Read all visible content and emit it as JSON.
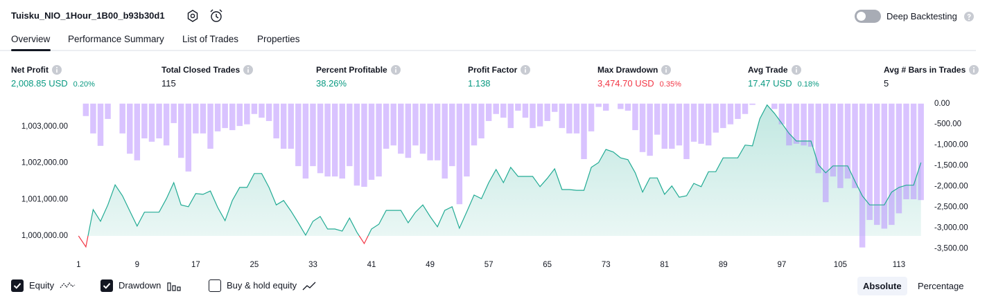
{
  "header": {
    "title": "Tuisku_NIO_1Hour_1B00_b93b30d1",
    "deep_backtesting": "Deep Backtesting"
  },
  "tabs": [
    "Overview",
    "Performance Summary",
    "List of Trades",
    "Properties"
  ],
  "active_tab": 0,
  "stats": [
    {
      "label": "Net Profit",
      "value": "2,008.85 USD",
      "percent": "0.20%",
      "color": "#089981"
    },
    {
      "label": "Total Closed Trades",
      "value": "115",
      "color": "#131722"
    },
    {
      "label": "Percent Profitable",
      "value": "38.26%",
      "color": "#089981"
    },
    {
      "label": "Profit Factor",
      "value": "1.138",
      "color": "#089981"
    },
    {
      "label": "Max Drawdown",
      "value": "3,474.70 USD",
      "percent": "0.35%",
      "color": "#f23645"
    },
    {
      "label": "Avg Trade",
      "value": "17.47 USD",
      "percent": "0.18%",
      "color": "#089981"
    },
    {
      "label": "Avg # Bars in Trades",
      "value": "5",
      "color": "#131722"
    }
  ],
  "chart_data": {
    "type": "combo",
    "x": [
      1,
      2,
      3,
      4,
      5,
      6,
      7,
      8,
      9,
      10,
      11,
      12,
      13,
      14,
      15,
      16,
      17,
      18,
      19,
      20,
      21,
      22,
      23,
      24,
      25,
      26,
      27,
      28,
      29,
      30,
      31,
      32,
      33,
      34,
      35,
      36,
      37,
      38,
      39,
      40,
      41,
      42,
      43,
      44,
      45,
      46,
      47,
      48,
      49,
      50,
      51,
      52,
      53,
      54,
      55,
      56,
      57,
      58,
      59,
      60,
      61,
      62,
      63,
      64,
      65,
      66,
      67,
      68,
      69,
      70,
      71,
      72,
      73,
      74,
      75,
      76,
      77,
      78,
      79,
      80,
      81,
      82,
      83,
      84,
      85,
      86,
      87,
      88,
      89,
      90,
      91,
      92,
      93,
      94,
      95,
      96,
      97,
      98,
      99,
      100,
      101,
      102,
      103,
      104,
      105,
      106,
      107,
      108,
      109,
      110,
      111,
      112,
      113,
      114,
      115,
      116
    ],
    "xlim": [
      0.5,
      116.6
    ],
    "xticks": [
      1,
      9,
      17,
      25,
      33,
      41,
      49,
      57,
      65,
      73,
      81,
      89,
      97,
      105,
      113
    ],
    "ylim": [
      999450,
      1003660
    ],
    "yticks": [
      {
        "value": 1000000,
        "label": "1,000,000.00"
      },
      {
        "value": 1001000,
        "label": "1,001,000.00"
      },
      {
        "value": 1002000,
        "label": "1,002,000.00"
      },
      {
        "value": 1003000,
        "label": "1,003,000.00"
      }
    ],
    "y2lim": [
      -3680,
      30
    ],
    "y2ticks": [
      {
        "value": 0,
        "label": "0.00"
      },
      {
        "value": -500,
        "label": "-500.00"
      },
      {
        "value": -1000,
        "label": "-1,000.00"
      },
      {
        "value": -1500,
        "label": "-1,500.00"
      },
      {
        "value": -2000,
        "label": "-2,000.00"
      },
      {
        "value": -2500,
        "label": "-2,500.00"
      },
      {
        "value": -3000,
        "label": "-3,000.00"
      },
      {
        "value": -3500,
        "label": "-3,500.00"
      }
    ],
    "series": [
      {
        "name": "Equity",
        "type": "area",
        "color": "#22ab94",
        "negative_color": "#f23645",
        "checked": true,
        "values": [
          1000000,
          999700,
          1000720,
          1000400,
          1000850,
          1001400,
          1001100,
          1000680,
          1000270,
          1000650,
          1000650,
          1000650,
          1001020,
          1001460,
          1000850,
          1000800,
          1001160,
          1001140,
          1001230,
          1000780,
          1000420,
          1000970,
          1001330,
          1001330,
          1001710,
          1001710,
          1001330,
          1000850,
          1000970,
          1000680,
          1000360,
          1000020,
          1000400,
          1000530,
          1000190,
          1000190,
          1000130,
          1000490,
          1000100,
          999790,
          1000190,
          1000320,
          1000700,
          1000700,
          1000700,
          1000360,
          1000650,
          1000850,
          1000530,
          1000250,
          1000700,
          1000800,
          1000210,
          1000660,
          1001120,
          1001020,
          1001460,
          1001820,
          1001460,
          1001880,
          1001630,
          1001630,
          1001630,
          1001350,
          1001580,
          1001840,
          1001270,
          1001270,
          1001250,
          1001250,
          1001880,
          1002010,
          1002370,
          1002300,
          1002140,
          1002090,
          1001730,
          1001200,
          1001590,
          1001590,
          1001140,
          1001370,
          1001060,
          1001100,
          1001440,
          1001350,
          1001760,
          1001760,
          1002140,
          1002140,
          1002140,
          1002490,
          1002470,
          1003210,
          1003590,
          1003360,
          1003090,
          1002810,
          1002600,
          1002600,
          1002600,
          1001950,
          1001730,
          1001920,
          1001920,
          1001920,
          1001500,
          1001100,
          1000850,
          1000850,
          1000850,
          1001200,
          1001330,
          1001390,
          1001390,
          1002010
        ]
      },
      {
        "name": "Drawdown",
        "type": "bar",
        "axis": "y2",
        "color": "#b388ff",
        "checked": true,
        "values": [
          null,
          -300,
          -720,
          -1020,
          -370,
          0,
          -720,
          -1210,
          -1370,
          -840,
          -920,
          -840,
          -1010,
          -470,
          -1310,
          -1640,
          -720,
          -720,
          -1090,
          -670,
          -590,
          -640,
          -540,
          -500,
          -250,
          -340,
          -420,
          -840,
          -1090,
          -1090,
          -1510,
          -1810,
          -1510,
          -1680,
          -1760,
          -1760,
          -1810,
          -1510,
          -1980,
          -2010,
          -1840,
          -1760,
          -1090,
          -1010,
          -1210,
          -1310,
          -1010,
          -1210,
          -1370,
          -1370,
          -1810,
          -1510,
          -2430,
          -1760,
          -1010,
          -840,
          -420,
          -250,
          -340,
          -590,
          -170,
          -340,
          -590,
          -550,
          -420,
          -200,
          -590,
          -720,
          -720,
          -1340,
          -670,
          -80,
          -170,
          0,
          -130,
          -170,
          -640,
          -1170,
          -1260,
          -750,
          -1090,
          -1090,
          -1010,
          -1340,
          -920,
          -970,
          -1010,
          -700,
          -590,
          -500,
          -370,
          -250,
          -30,
          0,
          0,
          -130,
          -500,
          -1010,
          -970,
          -1010,
          -1040,
          -1680,
          -2380,
          -1760,
          -2040,
          -1810,
          -2040,
          -3474.7,
          -2810,
          -2930,
          -3020,
          -2930,
          -2650,
          -2310,
          -2310,
          -2330
        ]
      }
    ],
    "buy_hold": {
      "label": "Buy & hold equity",
      "checked": false
    }
  },
  "scale_buttons": [
    "Absolute",
    "Percentage"
  ],
  "active_scale": 0
}
